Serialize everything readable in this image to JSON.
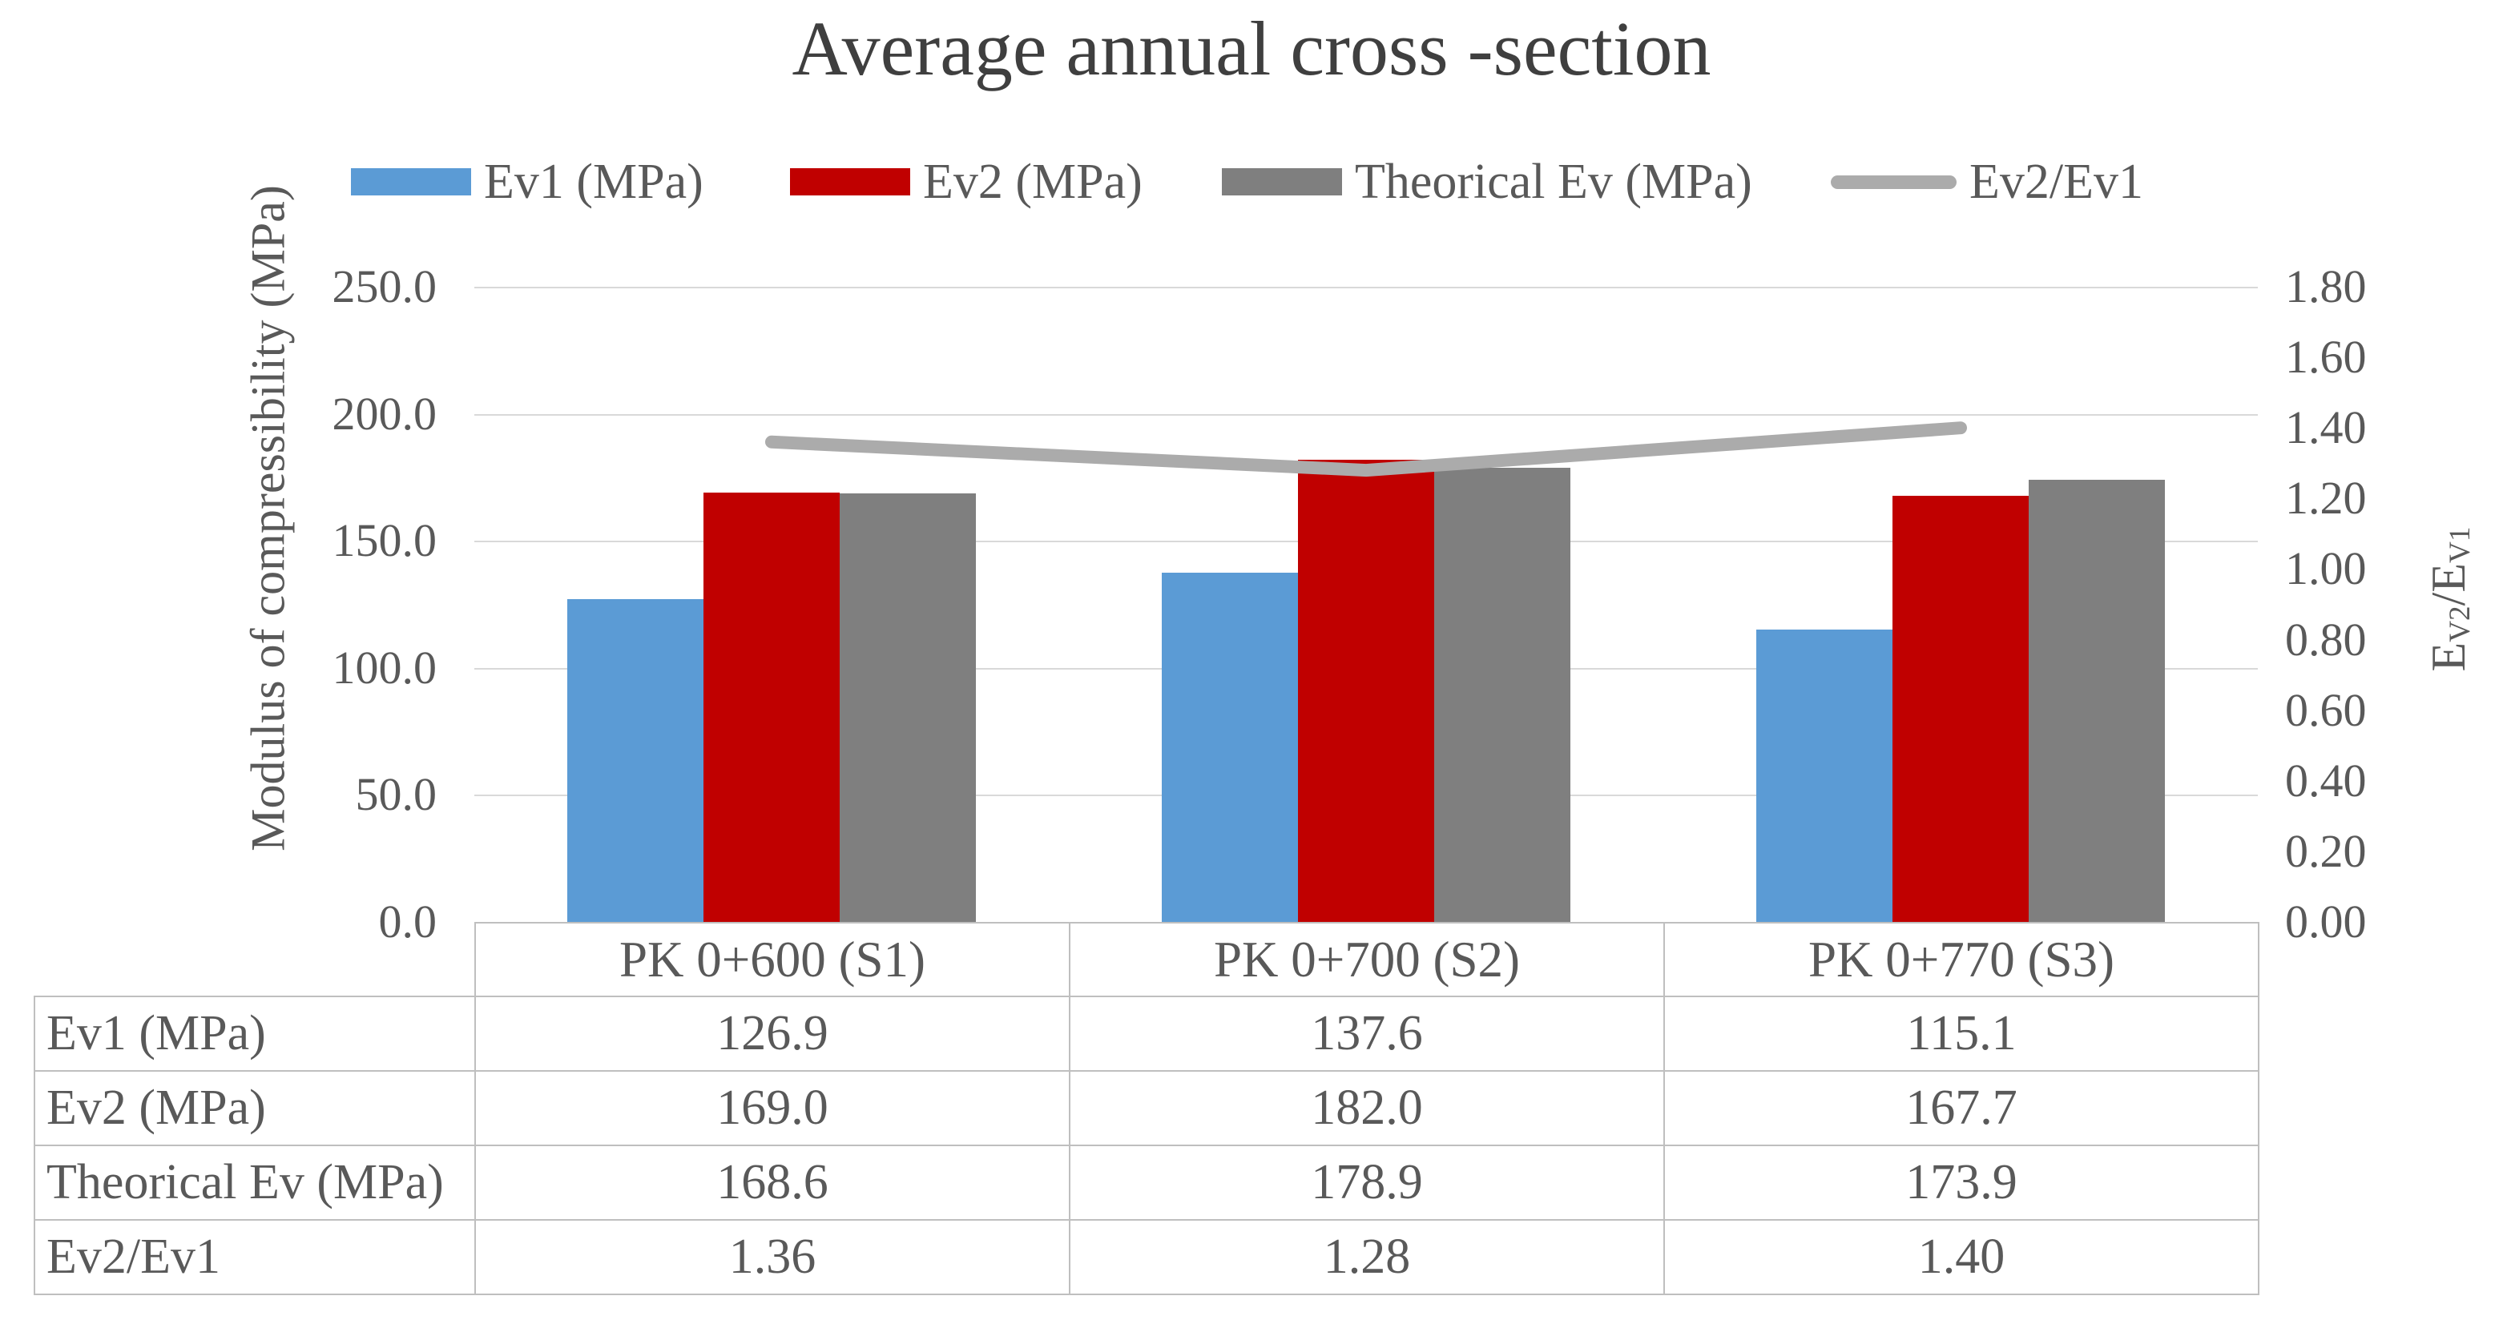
{
  "title": "Average annual cross -section",
  "colors": {
    "title_text": "#3F3F3F",
    "text": "#595959",
    "grid": "#D9D9D9",
    "table_border": "#BFBFBF",
    "ev1_blue": "#5B9BD5",
    "ev2_red": "#C00000",
    "theorical_gray": "#7F7F7F",
    "ratio_line_gray": "#ABABAB"
  },
  "legend": [
    {
      "label": "Ev1 (MPa)",
      "swatch": "bar",
      "color_key": "ev1_blue"
    },
    {
      "label": "Ev2 (MPa)",
      "swatch": "bar",
      "color_key": "ev2_red"
    },
    {
      "label": "Theorical Ev (MPa)",
      "swatch": "bar",
      "color_key": "theorical_gray"
    },
    {
      "label": "Ev2/Ev1",
      "swatch": "line",
      "color_key": "ratio_line_gray"
    }
  ],
  "chart_data": {
    "type": "bar+line combo",
    "categories": [
      "PK 0+600 (S1)",
      "PK 0+700 (S2)",
      "PK 0+770 (S3)"
    ],
    "series": [
      {
        "name": "Ev1 (MPa)",
        "type": "bar",
        "axis": "left",
        "color_key": "ev1_blue",
        "values": [
          126.9,
          137.6,
          115.1
        ]
      },
      {
        "name": "Ev2 (MPa)",
        "type": "bar",
        "axis": "left",
        "color_key": "ev2_red",
        "values": [
          169.0,
          182.0,
          167.7
        ]
      },
      {
        "name": "Theorical Ev (MPa)",
        "type": "bar",
        "axis": "left",
        "color_key": "theorical_gray",
        "values": [
          168.6,
          178.9,
          173.9
        ]
      },
      {
        "name": "Ev2/Ev1",
        "type": "line",
        "axis": "right",
        "color_key": "ratio_line_gray",
        "values": [
          1.36,
          1.28,
          1.4
        ]
      }
    ],
    "left_axis": {
      "title": "Modulus of compressibility (MPa)",
      "min": 0,
      "max": 250,
      "step": 50,
      "tick_labels": [
        "250.0",
        "200.0",
        "150.0",
        "100.0",
        "50.0",
        "0.0"
      ]
    },
    "right_axis": {
      "title_parts": {
        "e1": "E",
        "s1": "V2",
        "slash": "/",
        "e2": "E",
        "s2": "V1"
      },
      "min": 0,
      "max": 1.8,
      "step": 0.2,
      "tick_labels": [
        "1.80",
        "1.60",
        "1.40",
        "1.20",
        "1.00",
        "0.80",
        "0.60",
        "0.40",
        "0.20",
        "0.00"
      ]
    },
    "grid": true,
    "legend_position": "top"
  },
  "table": {
    "col_headers": [
      "PK 0+600 (S1)",
      "PK 0+700 (S2)",
      "PK 0+770 (S3)"
    ],
    "rows": [
      {
        "label": "Ev1 (MPa)",
        "values": [
          "126.9",
          "137.6",
          "115.1"
        ]
      },
      {
        "label": "Ev2 (MPa)",
        "values": [
          "169.0",
          "182.0",
          "167.7"
        ]
      },
      {
        "label": "Theorical Ev (MPa)",
        "values": [
          "168.6",
          "178.9",
          "173.9"
        ]
      },
      {
        "label": "Ev2/Ev1",
        "values": [
          "1.36",
          "1.28",
          "1.40"
        ]
      }
    ]
  }
}
